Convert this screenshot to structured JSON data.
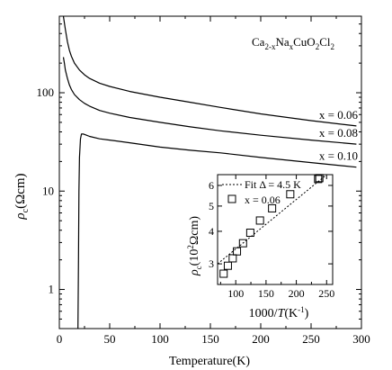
{
  "chart_data": [
    {
      "type": "line",
      "title": "",
      "xlabel": "Temperature(K)",
      "ylabel": "ρc(Ωcm)",
      "xlim": [
        0,
        300
      ],
      "ylim": [
        0.4,
        600
      ],
      "yscale": "log",
      "grid": false,
      "x_ticks": [
        0,
        50,
        100,
        150,
        200,
        250,
        300
      ],
      "x_tick_labels": [
        "0",
        "50",
        "100",
        "150",
        "200",
        "250",
        "300"
      ],
      "y_ticks": [
        1,
        10,
        100
      ],
      "y_tick_labels": [
        "1",
        "10",
        "100"
      ],
      "annotation": "Ca2-xNaxCuO2Cl2",
      "series": [
        {
          "name": "x = 0.06",
          "x": [
            4,
            6,
            8,
            10,
            12,
            15,
            20,
            25,
            30,
            40,
            50,
            70,
            100,
            130,
            160,
            200,
            250,
            295
          ],
          "y": [
            600,
            440,
            330,
            270,
            235,
            200,
            170,
            152,
            140,
            125,
            116,
            103,
            90,
            80,
            71,
            61,
            52,
            46
          ]
        },
        {
          "name": "x = 0.08",
          "x": [
            4,
            5,
            6,
            8,
            10,
            12,
            15,
            20,
            25,
            30,
            40,
            50,
            70,
            100,
            130,
            160,
            200,
            250,
            295
          ],
          "y": [
            230,
            200,
            170,
            140,
            120,
            108,
            96,
            85,
            78,
            73,
            66,
            62,
            56,
            50,
            45,
            41,
            37,
            33,
            30
          ]
        },
        {
          "name": "x = 0.10",
          "x": [
            18.5,
            19,
            19.5,
            20,
            21,
            22,
            24,
            27,
            30,
            40,
            50,
            70,
            100,
            130,
            160,
            200,
            250,
            295
          ],
          "y": [
            0.4,
            2,
            10,
            22,
            34,
            38,
            38,
            37,
            36,
            34,
            33,
            31,
            28,
            26,
            24.5,
            22,
            19.5,
            17.5
          ]
        }
      ]
    },
    {
      "type": "scatter",
      "title": "",
      "xlabel": "1000/T(K⁻¹)",
      "ylabel": "ρc(10²Ωcm)",
      "xlim": [
        70,
        260
      ],
      "ylim": [
        2.5,
        6.6
      ],
      "yscale": "log",
      "x_ticks": [
        100,
        150,
        200,
        250
      ],
      "x_tick_labels": [
        "100",
        "150",
        "200",
        "250"
      ],
      "y_ticks": [
        3,
        4,
        5,
        6
      ],
      "y_tick_labels": [
        "3",
        "4",
        "5",
        "6"
      ],
      "legend": "top-left",
      "series": [
        {
          "name": "x = 0.06",
          "x": [
            80,
            87,
            95,
            102,
            112,
            124,
            140,
            160,
            190,
            236,
            238
          ],
          "y": [
            2.75,
            2.95,
            3.15,
            3.35,
            3.6,
            3.95,
            4.4,
            4.9,
            5.55,
            6.35,
            6.4
          ]
        },
        {
          "name": "Fit Δ = 4.5 K",
          "x": [
            70,
            250
          ],
          "y": [
            3.0,
            6.6
          ]
        }
      ]
    }
  ]
}
